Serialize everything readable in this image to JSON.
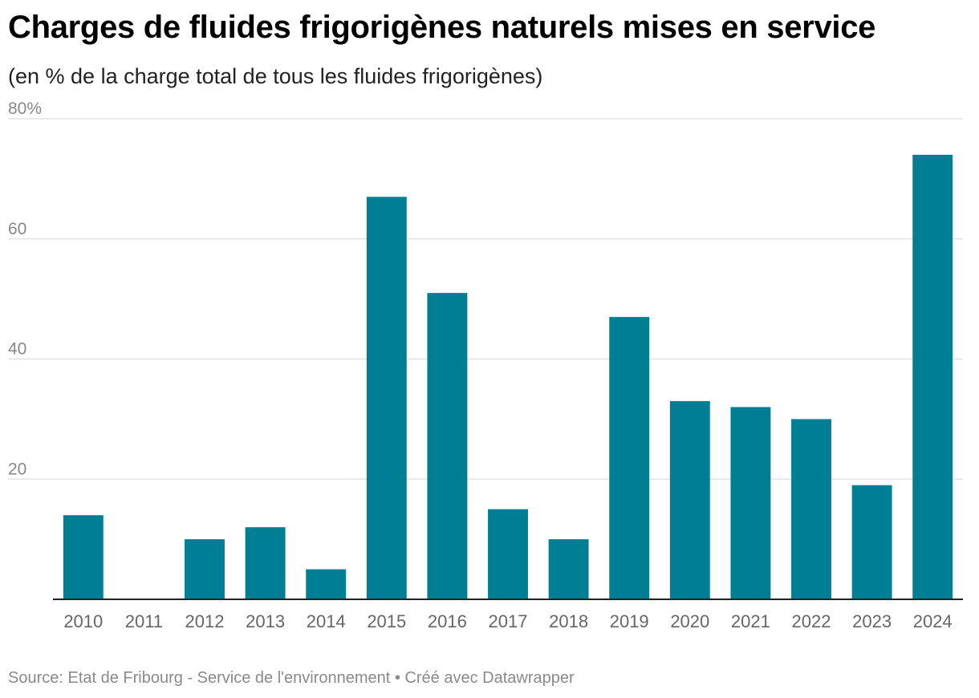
{
  "header": {
    "title": "Charges de fluides frigorigènes naturels mises en service",
    "subtitle": "(en % de la charge total de tous les fluides frigorigènes)"
  },
  "footer": {
    "source": "Source: Etat de Fribourg - Service de l'environnement",
    "separator": "•",
    "credit": "Créé avec Datawrapper"
  },
  "colors": {
    "bar": "#007f94",
    "grid": "#e3e3e3",
    "axis": "#222222",
    "tick_text": "#888888"
  },
  "chart_data": {
    "type": "bar",
    "title": "Charges de fluides frigorigènes naturels mises en service",
    "subtitle": "(en % de la charge total de tous les fluides frigorigènes)",
    "xlabel": "",
    "ylabel": "",
    "ylim": [
      0,
      80
    ],
    "yticks": [
      20,
      40,
      60,
      80
    ],
    "ytick_labels": [
      "20",
      "40",
      "60",
      "80%"
    ],
    "grid": true,
    "categories": [
      "2010",
      "2011",
      "2012",
      "2013",
      "2014",
      "2015",
      "2016",
      "2017",
      "2018",
      "2019",
      "2020",
      "2021",
      "2022",
      "2023",
      "2024"
    ],
    "values": [
      14,
      0,
      10,
      12,
      5,
      67,
      51,
      15,
      10,
      47,
      33,
      32,
      30,
      19,
      74
    ]
  }
}
